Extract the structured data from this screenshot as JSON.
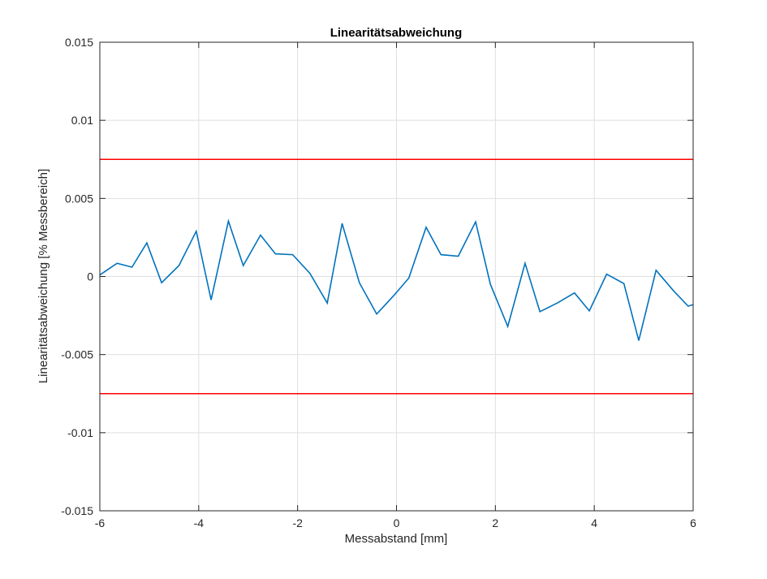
{
  "chart_data": {
    "type": "line",
    "title": "Linearitätsabweichung",
    "xlabel": "Messabstand [mm]",
    "ylabel": "Linearitätsabweichung [% Messbereich]",
    "xlim": [
      -6,
      6
    ],
    "ylim": [
      -0.015,
      0.015
    ],
    "grid": true,
    "legend": "none",
    "x_ticks": [
      -6,
      -4,
      -2,
      0,
      2,
      4,
      6
    ],
    "x_tick_labels": [
      "-6",
      "-4",
      "-2",
      "0",
      "2",
      "4",
      "6"
    ],
    "y_ticks": [
      -0.015,
      -0.01,
      -0.005,
      0,
      0.005,
      0.01,
      0.015
    ],
    "y_tick_labels": [
      "-0.015",
      "-0.01",
      "-0.005",
      "0",
      "0.005",
      "0.01",
      "0.015"
    ],
    "series": [
      {
        "color": "#0072BD",
        "x": [
          -6.0,
          -5.65,
          -5.35,
          -5.05,
          -4.75,
          -4.4,
          -4.05,
          -3.75,
          -3.4,
          -3.1,
          -2.75,
          -2.45,
          -2.1,
          -1.75,
          -1.4,
          -1.1,
          -0.75,
          -0.4,
          -0.05,
          0.25,
          0.6,
          0.9,
          1.25,
          1.6,
          1.9,
          2.25,
          2.6,
          2.9,
          3.25,
          3.6,
          3.9,
          4.25,
          4.6,
          4.9,
          5.25,
          5.6,
          5.9,
          6.0
        ],
        "y": [
          0.0001,
          0.00085,
          0.0006,
          0.00215,
          -0.0004,
          0.0007,
          0.0029,
          -0.0015,
          0.00355,
          0.0007,
          0.00265,
          0.00145,
          0.0014,
          0.0002,
          -0.0017,
          0.0034,
          -0.0004,
          -0.0024,
          -0.0012,
          -0.0001,
          0.00315,
          0.0014,
          0.0013,
          0.0035,
          -0.0005,
          -0.0032,
          0.00085,
          -0.00225,
          -0.0017,
          -0.00105,
          -0.0022,
          0.00015,
          -0.00045,
          -0.0041,
          0.0004,
          -0.0009,
          -0.0019,
          -0.0018
        ]
      }
    ],
    "reference_lines": [
      {
        "y": 0.0075,
        "color": "#FF0000"
      },
      {
        "y": -0.0075,
        "color": "#FF0000"
      }
    ],
    "colors": {
      "grid": "#dfdfdf",
      "axes": "#262626",
      "background": "#ffffff"
    }
  }
}
